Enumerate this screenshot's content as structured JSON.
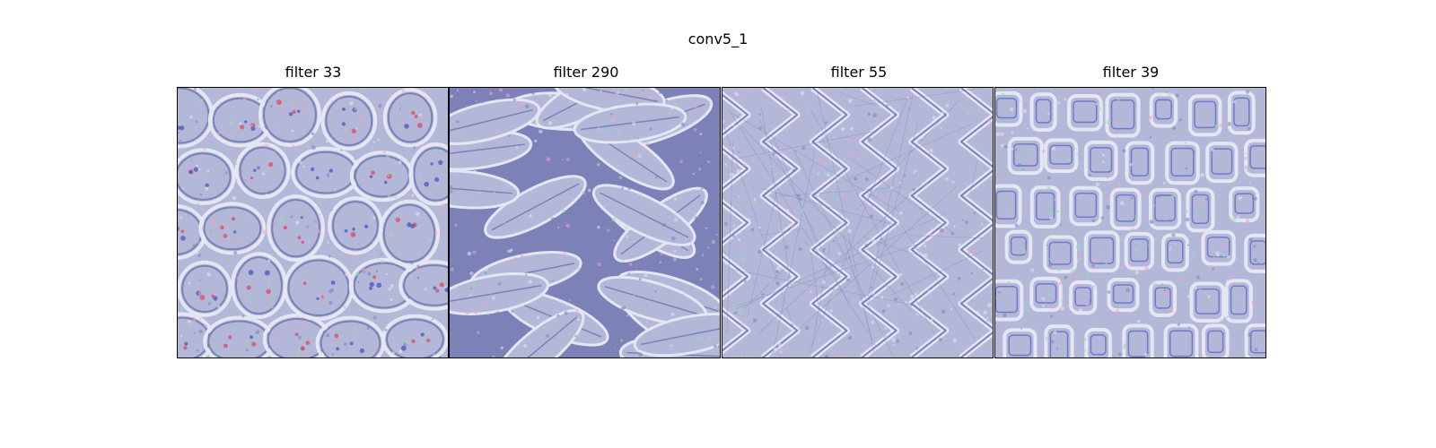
{
  "figure": {
    "title": "conv5_1",
    "panels": [
      {
        "title": "filter 33",
        "pattern": "cells"
      },
      {
        "title": "filter 290",
        "pattern": "leaves"
      },
      {
        "title": "filter 55",
        "pattern": "zigzag"
      },
      {
        "title": "filter 39",
        "pattern": "blocks"
      }
    ],
    "colors": {
      "base": "#b4b8d8",
      "highlight": "#e4e6f4",
      "shadow": "#7c82b8",
      "accent_green": "#8fe0b0",
      "accent_pink": "#f0a0c8",
      "accent_red": "#e04060",
      "accent_blue": "#4050c0"
    }
  }
}
